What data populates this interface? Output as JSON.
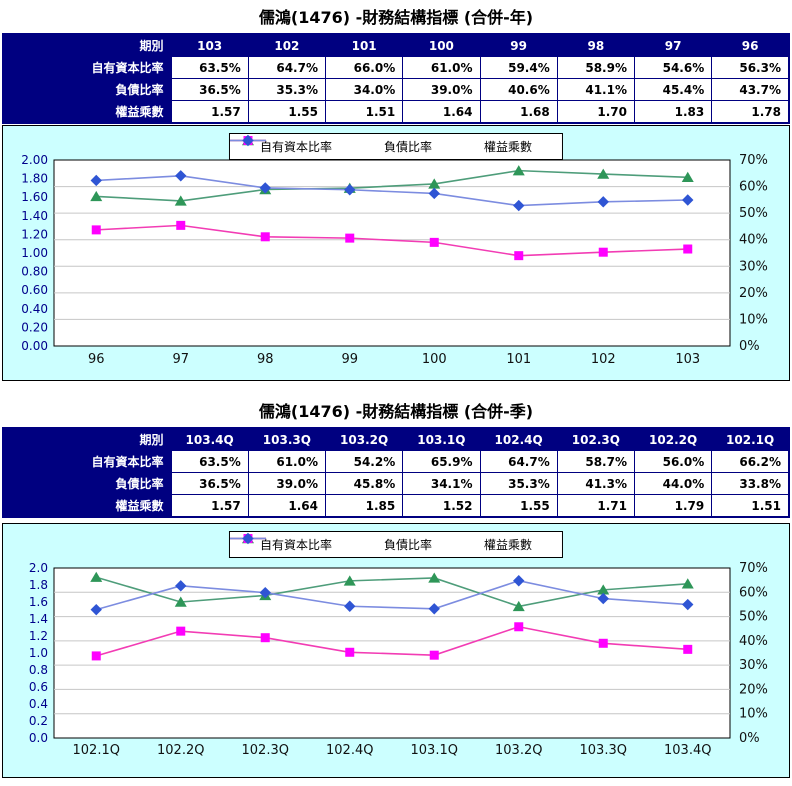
{
  "annual": {
    "title": "儒鴻(1476) -財務結構指標 (合併-年)",
    "table": {
      "corner_label": "期別",
      "columns": [
        "103",
        "102",
        "101",
        "100",
        "99",
        "98",
        "97",
        "96"
      ],
      "rows": [
        {
          "label": "自有資本比率",
          "values": [
            "63.5%",
            "64.7%",
            "66.0%",
            "61.0%",
            "59.4%",
            "58.9%",
            "54.6%",
            "56.3%"
          ]
        },
        {
          "label": "負債比率",
          "values": [
            "36.5%",
            "35.3%",
            "34.0%",
            "39.0%",
            "40.6%",
            "41.1%",
            "45.4%",
            "43.7%"
          ]
        },
        {
          "label": "權益乘數",
          "values": [
            "1.57",
            "1.55",
            "1.51",
            "1.64",
            "1.68",
            "1.70",
            "1.83",
            "1.78"
          ]
        }
      ]
    }
  },
  "quarterly": {
    "title": "儒鴻(1476) -財務結構指標 (合併-季)",
    "table": {
      "corner_label": "期別",
      "columns": [
        "103.4Q",
        "103.3Q",
        "103.2Q",
        "103.1Q",
        "102.4Q",
        "102.3Q",
        "102.2Q",
        "102.1Q"
      ],
      "rows": [
        {
          "label": "自有資本比率",
          "values": [
            "63.5%",
            "61.0%",
            "54.2%",
            "65.9%",
            "64.7%",
            "58.7%",
            "56.0%",
            "66.2%"
          ]
        },
        {
          "label": "負債比率",
          "values": [
            "36.5%",
            "39.0%",
            "45.8%",
            "34.1%",
            "35.3%",
            "41.3%",
            "44.0%",
            "33.8%"
          ]
        },
        {
          "label": "權益乘數",
          "values": [
            "1.57",
            "1.64",
            "1.85",
            "1.52",
            "1.55",
            "1.71",
            "1.79",
            "1.51"
          ]
        }
      ]
    }
  },
  "chart_data": [
    {
      "type": "line",
      "title": "儒鴻(1476) -財務結構指標 (合併-年)",
      "categories": [
        "96",
        "97",
        "98",
        "99",
        "100",
        "101",
        "102",
        "103"
      ],
      "series": [
        {
          "name": "自有資本比率",
          "axis": "right",
          "marker": "triangle",
          "line_color": "#4E9D7A",
          "marker_color": "#2E9658",
          "unit": "%",
          "values": [
            56.3,
            54.6,
            58.9,
            59.4,
            61.0,
            66.0,
            64.7,
            63.5
          ]
        },
        {
          "name": "負債比率",
          "axis": "right",
          "marker": "square",
          "line_color": "#F23CB4",
          "marker_color": "#FF00FF",
          "unit": "%",
          "values": [
            43.7,
            45.4,
            41.1,
            40.6,
            39.0,
            34.0,
            35.3,
            36.5
          ]
        },
        {
          "name": "權益乘數",
          "axis": "left",
          "marker": "diamond",
          "line_color": "#7C8CE0",
          "marker_color": "#2F55D4",
          "unit": "",
          "values": [
            1.78,
            1.83,
            1.7,
            1.68,
            1.64,
            1.51,
            1.55,
            1.57
          ]
        }
      ],
      "left_axis": {
        "min": 0,
        "max": 2.0,
        "step": 0.2,
        "decimals": 2
      },
      "right_axis": {
        "min": 0,
        "max": 70,
        "step": 10,
        "suffix": "%"
      },
      "legend_position": "top",
      "grid": true,
      "plot_bg": "#FFFFFF",
      "chart_bg": "#CCFFFF",
      "grid_color": "#C6C6C6"
    },
    {
      "type": "line",
      "title": "儒鴻(1476) -財務結構指標 (合併-季)",
      "categories": [
        "102.1Q",
        "102.2Q",
        "102.3Q",
        "102.4Q",
        "103.1Q",
        "103.2Q",
        "103.3Q",
        "103.4Q"
      ],
      "series": [
        {
          "name": "自有資本比率",
          "axis": "right",
          "marker": "triangle",
          "line_color": "#4E9D7A",
          "marker_color": "#2E9658",
          "unit": "%",
          "values": [
            66.2,
            56.0,
            58.7,
            64.7,
            65.9,
            54.2,
            61.0,
            63.5
          ]
        },
        {
          "name": "負債比率",
          "axis": "right",
          "marker": "square",
          "line_color": "#F23CB4",
          "marker_color": "#FF00FF",
          "unit": "%",
          "values": [
            33.8,
            44.0,
            41.3,
            35.3,
            34.1,
            45.8,
            39.0,
            36.5
          ]
        },
        {
          "name": "權益乘數",
          "axis": "left",
          "marker": "diamond",
          "line_color": "#7C8CE0",
          "marker_color": "#2F55D4",
          "unit": "",
          "values": [
            1.51,
            1.79,
            1.71,
            1.55,
            1.52,
            1.85,
            1.64,
            1.57
          ]
        }
      ],
      "left_axis": {
        "min": 0,
        "max": 2.0,
        "step": 0.2,
        "decimals": 1
      },
      "right_axis": {
        "min": 0,
        "max": 70,
        "step": 10,
        "suffix": "%"
      },
      "legend_position": "top",
      "grid": true,
      "plot_bg": "#FFFFFF",
      "chart_bg": "#CCFFFF",
      "grid_color": "#C6C6C6"
    }
  ],
  "colors": {
    "table_header_bg": "#000080",
    "table_border": "#000080",
    "chart_background": "#CCFFFF",
    "left_axis_text": "#00008B",
    "axis_text": "#111111"
  }
}
